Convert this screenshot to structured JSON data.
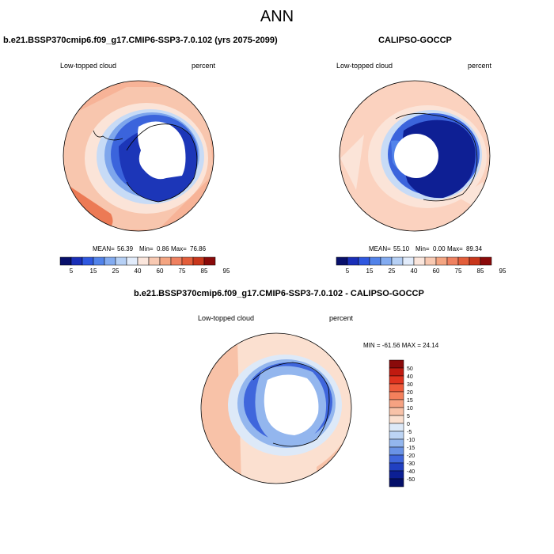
{
  "figure": {
    "title": "ANN"
  },
  "panels": [
    {
      "title": "b.e21.BSSP370cmip6.f09_g17.CMIP6-SSP3-7.0.102 (yrs 2075-2099)",
      "left_label": "Low-topped cloud",
      "right_label": "percent",
      "mean_label": "MEAN=",
      "mean": "56.39",
      "min_label": "Min=",
      "min": "0.86",
      "max_label": "Max=",
      "max": "76.86"
    },
    {
      "title": "CALIPSO-GOCCP",
      "left_label": "Low-topped cloud",
      "right_label": "percent",
      "mean_label": "MEAN=",
      "mean": "55.10",
      "min_label": "Min=",
      "min": "0.00",
      "max_label": "Max=",
      "max": "89.34"
    },
    {
      "title": "b.e21.BSSP370cmip6.f09_g17.CMIP6-SSP3-7.0.102 - CALIPSO-GOCCP",
      "left_label": "Low-topped cloud",
      "right_label": "percent",
      "stats_line": "MIN = -61.56 MAX =  24.14"
    }
  ],
  "colorbar_abs": {
    "labels": [
      "5",
      "15",
      "25",
      "40",
      "60",
      "75",
      "85",
      "95"
    ],
    "colors": [
      "#08106b",
      "#1a2fb8",
      "#2f58e0",
      "#5283ea",
      "#83abf0",
      "#b6d0f5",
      "#e2ecfb",
      "#fbe6dc",
      "#f8c9b2",
      "#f4a582",
      "#ef8160",
      "#e35e3b",
      "#c8371c",
      "#8a0a0a"
    ]
  },
  "colorbar_diff": {
    "labels": [
      "50",
      "40",
      "30",
      "20",
      "15",
      "10",
      "5",
      "0",
      "-5",
      "-10",
      "-15",
      "-20",
      "-30",
      "-40",
      "-50"
    ],
    "colors": [
      "#8a0a0a",
      "#c01a10",
      "#e0321e",
      "#ef5a3a",
      "#f4805c",
      "#f6a282",
      "#f8c2a8",
      "#fbe0d0",
      "#dde9f8",
      "#bcd4f4",
      "#93b6ee",
      "#6a93e6",
      "#3f66dc",
      "#2140c2",
      "#0c1f94",
      "#05106a"
    ]
  }
}
